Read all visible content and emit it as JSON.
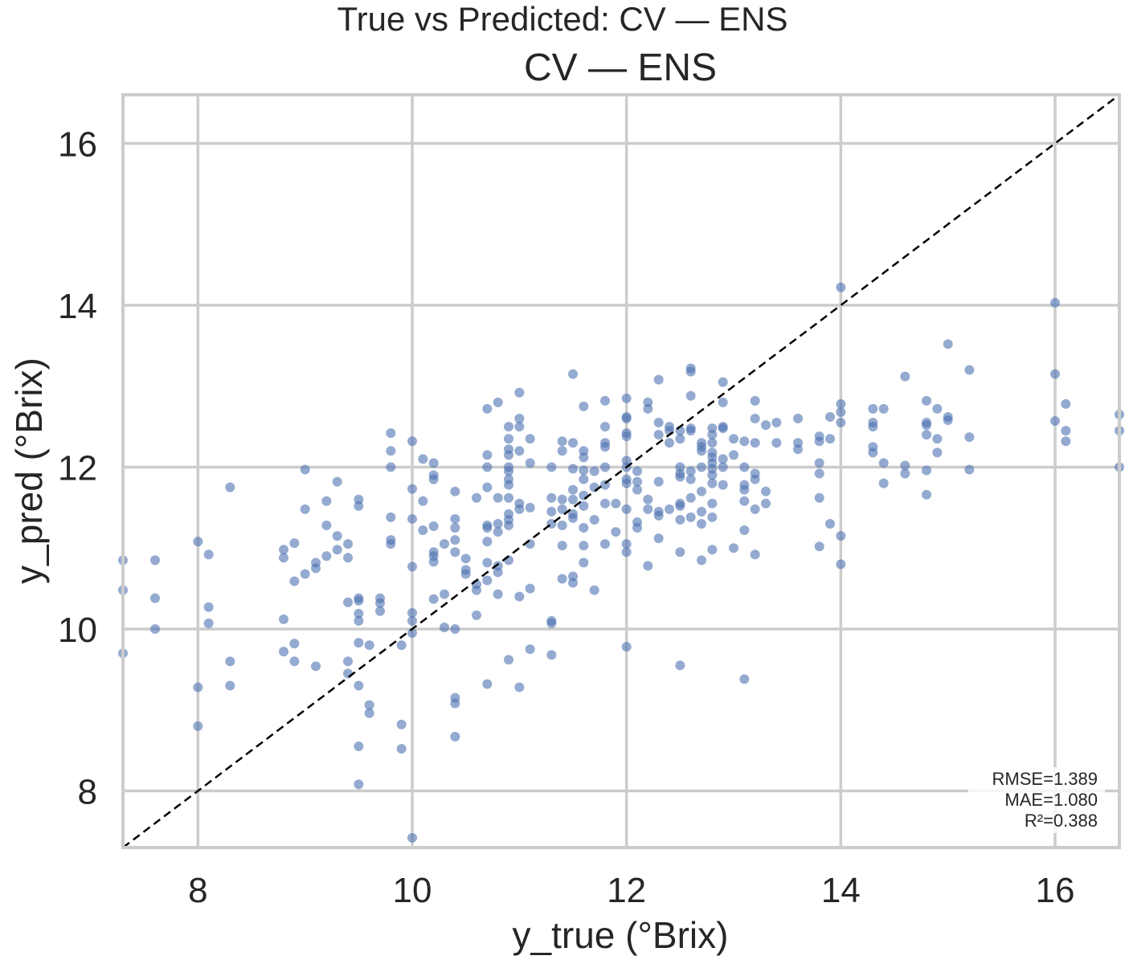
{
  "chart_data": {
    "type": "scatter",
    "suptitle": "True vs Predicted: CV — ENS",
    "title": "CV — ENS",
    "xlabel": "y_true (°Brix)",
    "ylabel": "y_pred (°Brix)",
    "xlim": [
      7.3,
      16.6
    ],
    "ylim": [
      7.3,
      16.6
    ],
    "xticks": [
      "8",
      "10",
      "12",
      "14",
      "16"
    ],
    "yticks": [
      "8",
      "10",
      "12",
      "14",
      "16"
    ],
    "grid": true,
    "identity_line": true,
    "point_color": "#4c72b0",
    "stats": [
      "RMSE=1.389",
      "MAE=1.080",
      "R²=0.388"
    ],
    "points": [
      [
        7.3,
        10.85
      ],
      [
        7.3,
        10.48
      ],
      [
        7.3,
        9.7
      ],
      [
        7.6,
        10.85
      ],
      [
        7.6,
        10.38
      ],
      [
        7.6,
        10.0
      ],
      [
        8.0,
        11.08
      ],
      [
        8.0,
        9.28
      ],
      [
        8.0,
        8.8
      ],
      [
        8.1,
        10.92
      ],
      [
        8.1,
        10.27
      ],
      [
        8.1,
        10.07
      ],
      [
        8.3,
        11.75
      ],
      [
        8.3,
        9.6
      ],
      [
        8.3,
        9.3
      ],
      [
        8.8,
        10.98
      ],
      [
        8.8,
        10.88
      ],
      [
        8.8,
        10.12
      ],
      [
        8.8,
        9.72
      ],
      [
        8.9,
        11.06
      ],
      [
        8.9,
        10.59
      ],
      [
        8.9,
        9.82
      ],
      [
        8.9,
        9.6
      ],
      [
        9.0,
        11.97
      ],
      [
        9.0,
        11.48
      ],
      [
        9.0,
        10.68
      ],
      [
        9.1,
        10.82
      ],
      [
        9.1,
        10.75
      ],
      [
        9.1,
        9.54
      ],
      [
        9.2,
        11.58
      ],
      [
        9.2,
        11.28
      ],
      [
        9.2,
        10.9
      ],
      [
        9.3,
        11.82
      ],
      [
        9.3,
        11.15
      ],
      [
        9.3,
        10.98
      ],
      [
        9.4,
        11.05
      ],
      [
        9.4,
        10.88
      ],
      [
        9.4,
        10.33
      ],
      [
        9.4,
        9.6
      ],
      [
        9.4,
        9.45
      ],
      [
        9.5,
        11.6
      ],
      [
        9.5,
        11.52
      ],
      [
        9.5,
        10.38
      ],
      [
        9.5,
        10.35
      ],
      [
        9.5,
        10.19
      ],
      [
        9.5,
        10.1
      ],
      [
        9.5,
        9.83
      ],
      [
        9.5,
        9.3
      ],
      [
        9.5,
        8.55
      ],
      [
        9.5,
        8.08
      ],
      [
        9.6,
        9.8
      ],
      [
        9.6,
        9.06
      ],
      [
        9.6,
        8.96
      ],
      [
        9.7,
        10.38
      ],
      [
        9.7,
        10.32
      ],
      [
        9.7,
        10.22
      ],
      [
        9.8,
        12.42
      ],
      [
        9.8,
        12.2
      ],
      [
        9.8,
        12.0
      ],
      [
        9.8,
        11.38
      ],
      [
        9.8,
        11.1
      ],
      [
        9.8,
        11.05
      ],
      [
        9.9,
        9.8
      ],
      [
        9.9,
        8.82
      ],
      [
        9.9,
        8.52
      ],
      [
        10.0,
        12.32
      ],
      [
        10.0,
        11.73
      ],
      [
        10.0,
        11.36
      ],
      [
        10.0,
        10.77
      ],
      [
        10.0,
        10.2
      ],
      [
        10.0,
        10.1
      ],
      [
        10.0,
        9.95
      ],
      [
        10.0,
        7.42
      ],
      [
        10.1,
        12.1
      ],
      [
        10.1,
        11.58
      ],
      [
        10.1,
        11.22
      ],
      [
        10.2,
        12.05
      ],
      [
        10.2,
        11.9
      ],
      [
        10.2,
        11.85
      ],
      [
        10.2,
        11.27
      ],
      [
        10.2,
        10.95
      ],
      [
        10.2,
        10.9
      ],
      [
        10.2,
        10.83
      ],
      [
        10.2,
        10.37
      ],
      [
        10.3,
        11.05
      ],
      [
        10.3,
        10.43
      ],
      [
        10.3,
        10.02
      ],
      [
        10.4,
        11.7
      ],
      [
        10.4,
        11.36
      ],
      [
        10.4,
        11.25
      ],
      [
        10.4,
        11.1
      ],
      [
        10.4,
        10.95
      ],
      [
        10.4,
        10.0
      ],
      [
        10.4,
        9.15
      ],
      [
        10.4,
        9.08
      ],
      [
        10.4,
        8.67
      ],
      [
        10.5,
        10.87
      ],
      [
        10.5,
        10.73
      ],
      [
        10.5,
        10.68
      ],
      [
        10.6,
        11.62
      ],
      [
        10.6,
        10.55
      ],
      [
        10.6,
        10.48
      ],
      [
        10.6,
        10.17
      ],
      [
        10.7,
        12.72
      ],
      [
        10.7,
        12.15
      ],
      [
        10.7,
        12.0
      ],
      [
        10.7,
        11.75
      ],
      [
        10.7,
        11.28
      ],
      [
        10.7,
        11.25
      ],
      [
        10.7,
        11.08
      ],
      [
        10.7,
        10.82
      ],
      [
        10.7,
        10.6
      ],
      [
        10.7,
        9.32
      ],
      [
        10.8,
        12.8
      ],
      [
        10.8,
        11.62
      ],
      [
        10.8,
        11.3
      ],
      [
        10.8,
        11.2
      ],
      [
        10.8,
        10.78
      ],
      [
        10.8,
        10.7
      ],
      [
        10.8,
        10.43
      ],
      [
        10.9,
        12.5
      ],
      [
        10.9,
        12.35
      ],
      [
        10.9,
        12.22
      ],
      [
        10.9,
        12.15
      ],
      [
        10.9,
        12.0
      ],
      [
        10.9,
        11.95
      ],
      [
        10.9,
        11.85
      ],
      [
        10.9,
        11.78
      ],
      [
        10.9,
        11.62
      ],
      [
        10.9,
        11.42
      ],
      [
        10.9,
        11.35
      ],
      [
        10.9,
        11.28
      ],
      [
        10.9,
        10.85
      ],
      [
        10.9,
        9.62
      ],
      [
        11.0,
        12.92
      ],
      [
        11.0,
        12.6
      ],
      [
        11.0,
        12.5
      ],
      [
        11.0,
        12.2
      ],
      [
        11.0,
        11.55
      ],
      [
        11.0,
        11.48
      ],
      [
        11.0,
        10.4
      ],
      [
        11.0,
        9.28
      ],
      [
        11.1,
        12.35
      ],
      [
        11.1,
        12.05
      ],
      [
        11.1,
        11.5
      ],
      [
        11.1,
        11.05
      ],
      [
        11.1,
        10.5
      ],
      [
        11.1,
        9.75
      ],
      [
        11.3,
        12.0
      ],
      [
        11.3,
        11.62
      ],
      [
        11.3,
        11.45
      ],
      [
        11.3,
        11.3
      ],
      [
        11.3,
        10.1
      ],
      [
        11.3,
        10.07
      ],
      [
        11.3,
        9.68
      ],
      [
        11.4,
        12.32
      ],
      [
        11.4,
        12.2
      ],
      [
        11.4,
        11.6
      ],
      [
        11.4,
        11.48
      ],
      [
        11.4,
        11.28
      ],
      [
        11.4,
        11.03
      ],
      [
        11.4,
        10.62
      ],
      [
        11.5,
        13.15
      ],
      [
        11.5,
        12.3
      ],
      [
        11.5,
        11.98
      ],
      [
        11.5,
        11.72
      ],
      [
        11.5,
        11.6
      ],
      [
        11.5,
        11.42
      ],
      [
        11.5,
        11.37
      ],
      [
        11.5,
        10.65
      ],
      [
        11.5,
        10.57
      ],
      [
        11.6,
        12.75
      ],
      [
        11.6,
        12.2
      ],
      [
        11.6,
        12.12
      ],
      [
        11.6,
        11.96
      ],
      [
        11.6,
        11.85
      ],
      [
        11.6,
        11.65
      ],
      [
        11.6,
        11.52
      ],
      [
        11.6,
        11.25
      ],
      [
        11.6,
        11.03
      ],
      [
        11.6,
        10.82
      ],
      [
        11.7,
        11.95
      ],
      [
        11.7,
        11.75
      ],
      [
        11.7,
        11.35
      ],
      [
        11.7,
        10.48
      ],
      [
        11.8,
        12.82
      ],
      [
        11.8,
        12.5
      ],
      [
        11.8,
        12.3
      ],
      [
        11.8,
        12.25
      ],
      [
        11.8,
        12.0
      ],
      [
        11.8,
        11.78
      ],
      [
        11.8,
        11.55
      ],
      [
        11.8,
        11.05
      ],
      [
        11.9,
        11.55
      ],
      [
        11.9,
        11.2
      ],
      [
        12.0,
        12.85
      ],
      [
        12.0,
        12.62
      ],
      [
        12.0,
        12.6
      ],
      [
        12.0,
        12.42
      ],
      [
        12.0,
        12.38
      ],
      [
        12.0,
        12.08
      ],
      [
        12.0,
        12.0
      ],
      [
        12.0,
        11.85
      ],
      [
        12.0,
        11.8
      ],
      [
        12.0,
        11.48
      ],
      [
        12.0,
        11.05
      ],
      [
        12.0,
        10.95
      ],
      [
        12.0,
        9.78
      ],
      [
        12.1,
        11.95
      ],
      [
        12.1,
        11.82
      ],
      [
        12.1,
        11.72
      ],
      [
        12.1,
        11.32
      ],
      [
        12.1,
        11.25
      ],
      [
        12.2,
        12.8
      ],
      [
        12.2,
        12.72
      ],
      [
        12.2,
        11.6
      ],
      [
        12.2,
        11.48
      ],
      [
        12.2,
        10.78
      ],
      [
        12.3,
        13.08
      ],
      [
        12.3,
        12.55
      ],
      [
        12.3,
        12.4
      ],
      [
        12.3,
        11.82
      ],
      [
        12.3,
        11.45
      ],
      [
        12.3,
        11.4
      ],
      [
        12.3,
        11.12
      ],
      [
        12.4,
        12.5
      ],
      [
        12.4,
        12.45
      ],
      [
        12.4,
        12.3
      ],
      [
        12.4,
        11.48
      ],
      [
        12.5,
        12.45
      ],
      [
        12.5,
        12.35
      ],
      [
        12.5,
        12.0
      ],
      [
        12.5,
        11.92
      ],
      [
        12.5,
        11.88
      ],
      [
        12.5,
        11.55
      ],
      [
        12.5,
        11.52
      ],
      [
        12.5,
        11.35
      ],
      [
        12.5,
        10.95
      ],
      [
        12.5,
        9.55
      ],
      [
        12.6,
        13.22
      ],
      [
        12.6,
        13.18
      ],
      [
        12.6,
        12.88
      ],
      [
        12.6,
        12.48
      ],
      [
        12.6,
        12.45
      ],
      [
        12.6,
        11.95
      ],
      [
        12.6,
        11.85
      ],
      [
        12.6,
        11.62
      ],
      [
        12.6,
        11.38
      ],
      [
        12.7,
        12.3
      ],
      [
        12.7,
        12.25
      ],
      [
        12.7,
        12.2
      ],
      [
        12.7,
        12.0
      ],
      [
        12.7,
        11.7
      ],
      [
        12.7,
        11.45
      ],
      [
        12.7,
        11.3
      ],
      [
        12.7,
        10.85
      ],
      [
        12.8,
        12.48
      ],
      [
        12.8,
        12.4
      ],
      [
        12.8,
        12.3
      ],
      [
        12.8,
        12.18
      ],
      [
        12.8,
        12.12
      ],
      [
        12.8,
        12.05
      ],
      [
        12.8,
        11.98
      ],
      [
        12.8,
        11.9
      ],
      [
        12.8,
        11.8
      ],
      [
        12.8,
        11.55
      ],
      [
        12.8,
        11.38
      ],
      [
        12.8,
        10.98
      ],
      [
        12.9,
        13.05
      ],
      [
        12.9,
        12.8
      ],
      [
        12.9,
        12.5
      ],
      [
        12.9,
        12.48
      ],
      [
        12.9,
        12.1
      ],
      [
        12.9,
        12.0
      ],
      [
        12.9,
        11.78
      ],
      [
        13.0,
        12.35
      ],
      [
        13.0,
        12.15
      ],
      [
        13.0,
        11.0
      ],
      [
        13.1,
        12.32
      ],
      [
        13.1,
        12.0
      ],
      [
        13.1,
        11.78
      ],
      [
        13.1,
        11.72
      ],
      [
        13.1,
        11.58
      ],
      [
        13.1,
        11.22
      ],
      [
        13.1,
        9.38
      ],
      [
        13.2,
        12.82
      ],
      [
        13.2,
        12.6
      ],
      [
        13.2,
        12.3
      ],
      [
        13.2,
        11.92
      ],
      [
        13.2,
        11.85
      ],
      [
        13.2,
        11.48
      ],
      [
        13.2,
        10.92
      ],
      [
        13.3,
        12.52
      ],
      [
        13.3,
        11.7
      ],
      [
        13.3,
        11.55
      ],
      [
        13.4,
        12.55
      ],
      [
        13.4,
        12.3
      ],
      [
        13.6,
        12.6
      ],
      [
        13.6,
        12.3
      ],
      [
        13.6,
        12.22
      ],
      [
        13.8,
        12.38
      ],
      [
        13.8,
        12.32
      ],
      [
        13.8,
        12.05
      ],
      [
        13.8,
        11.92
      ],
      [
        13.8,
        11.62
      ],
      [
        13.8,
        11.02
      ],
      [
        13.9,
        12.62
      ],
      [
        13.9,
        12.35
      ],
      [
        13.9,
        11.3
      ],
      [
        14.0,
        14.22
      ],
      [
        14.0,
        12.78
      ],
      [
        14.0,
        12.68
      ],
      [
        14.0,
        12.55
      ],
      [
        14.0,
        11.15
      ],
      [
        14.0,
        10.8
      ],
      [
        14.3,
        12.72
      ],
      [
        14.3,
        12.55
      ],
      [
        14.3,
        12.5
      ],
      [
        14.3,
        12.25
      ],
      [
        14.3,
        12.18
      ],
      [
        14.4,
        12.72
      ],
      [
        14.4,
        12.05
      ],
      [
        14.4,
        11.8
      ],
      [
        14.6,
        13.12
      ],
      [
        14.6,
        12.02
      ],
      [
        14.6,
        11.92
      ],
      [
        14.8,
        12.82
      ],
      [
        14.8,
        12.55
      ],
      [
        14.8,
        12.52
      ],
      [
        14.8,
        12.4
      ],
      [
        14.8,
        11.96
      ],
      [
        14.8,
        11.66
      ],
      [
        14.9,
        12.72
      ],
      [
        14.9,
        12.35
      ],
      [
        14.9,
        12.18
      ],
      [
        15.0,
        13.52
      ],
      [
        15.0,
        12.62
      ],
      [
        15.0,
        12.58
      ],
      [
        15.2,
        13.2
      ],
      [
        15.2,
        12.37
      ],
      [
        15.2,
        11.97
      ],
      [
        16.0,
        14.03
      ],
      [
        16.0,
        13.15
      ],
      [
        16.0,
        12.57
      ],
      [
        16.1,
        12.78
      ],
      [
        16.1,
        12.45
      ],
      [
        16.1,
        12.32
      ],
      [
        16.6,
        12.65
      ],
      [
        16.6,
        12.45
      ],
      [
        16.6,
        12.0
      ]
    ]
  }
}
